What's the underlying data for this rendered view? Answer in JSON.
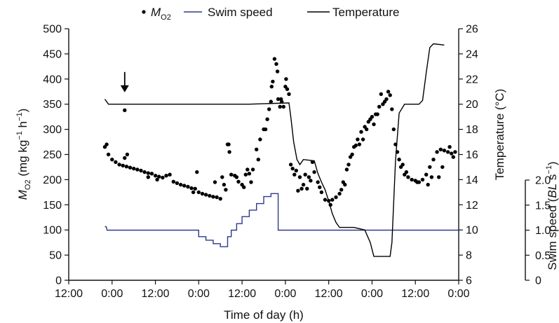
{
  "chart_data": {
    "type": "line",
    "xlabel": "Time of day (h)",
    "x_ticks": [
      "12:00",
      "0:00",
      "12:00",
      "0:00",
      "12:00",
      "0:00",
      "12:00",
      "0:00",
      "12:00",
      "0:00"
    ],
    "x_unit": "hours since first 12:00 tick",
    "xlim": [
      0,
      108
    ],
    "legend": {
      "placement": "top",
      "entries": [
        {
          "key": "mo2",
          "label_base": "M",
          "label_sub": "O2"
        },
        {
          "key": "speed",
          "label": "Swim speed"
        },
        {
          "key": "temp",
          "label": "Temperature"
        }
      ]
    },
    "axes": {
      "left": {
        "label_base": "M",
        "label_sub": "O2",
        "label_rest": " (mg kg",
        "label_exp1": "−1",
        "label_mid": " h",
        "label_exp2": "−1",
        "label_end": ")",
        "ylim": [
          0,
          500
        ],
        "ticks": [
          "0",
          "50",
          "100",
          "150",
          "200",
          "250",
          "300",
          "350",
          "400",
          "450",
          "500"
        ]
      },
      "right_temp": {
        "label": "Temperature (°C)",
        "ylim": [
          6,
          26
        ],
        "ticks": [
          "6",
          "8",
          "10",
          "12",
          "14",
          "16",
          "18",
          "20",
          "22",
          "24",
          "26"
        ]
      },
      "right_speed": {
        "label_pre": "Swim speed (",
        "label_italic": "BL",
        "label_mid": " s",
        "label_exp": "−1",
        "label_end": ")",
        "ylim": [
          0,
          2
        ],
        "ticks": [
          "0",
          "0.5",
          "1.0",
          "1.5",
          "2.0"
        ]
      }
    },
    "annotation": {
      "type": "arrow",
      "x": 15.5,
      "mo2": 375
    },
    "colors": {
      "mo2": "#000000",
      "speed": "#2e3a8c",
      "temp": "#000000"
    },
    "series": [
      {
        "key": "speed",
        "name": "Swim speed",
        "unit": "BL s-1",
        "points": [
          [
            10,
            1.07
          ],
          [
            10.4,
            1.07
          ],
          [
            10.6,
            1.0
          ],
          [
            36,
            1.0
          ],
          [
            36,
            0.87
          ],
          [
            38,
            0.87
          ],
          [
            38,
            0.8
          ],
          [
            40,
            0.8
          ],
          [
            40,
            0.73
          ],
          [
            42,
            0.73
          ],
          [
            42,
            0.67
          ],
          [
            44,
            0.67
          ],
          [
            44,
            0.87
          ],
          [
            45,
            0.87
          ],
          [
            45,
            1.0
          ],
          [
            46.5,
            1.0
          ],
          [
            46.5,
            1.13
          ],
          [
            48,
            1.13
          ],
          [
            48,
            1.27
          ],
          [
            50,
            1.27
          ],
          [
            50,
            1.4
          ],
          [
            52,
            1.4
          ],
          [
            52,
            1.53
          ],
          [
            54,
            1.53
          ],
          [
            54,
            1.67
          ],
          [
            56,
            1.67
          ],
          [
            56,
            1.73
          ],
          [
            58,
            1.73
          ],
          [
            58,
            1.0
          ],
          [
            108,
            1.0
          ]
        ]
      },
      {
        "key": "temp",
        "name": "Temperature",
        "unit": "°C",
        "points": [
          [
            10,
            20.4
          ],
          [
            11,
            20.0
          ],
          [
            30,
            20.0
          ],
          [
            50,
            20.0
          ],
          [
            61,
            20.1
          ],
          [
            61.5,
            19.0
          ],
          [
            62.3,
            17.0
          ],
          [
            63.2,
            15.6
          ],
          [
            64,
            15.2
          ],
          [
            65,
            15.6
          ],
          [
            68,
            15.5
          ],
          [
            69,
            14.5
          ],
          [
            70,
            13.8
          ],
          [
            71,
            13.2
          ],
          [
            72,
            12.3
          ],
          [
            73,
            11.3
          ],
          [
            74,
            10.6
          ],
          [
            75,
            10.2
          ],
          [
            79,
            10.2
          ],
          [
            82,
            10.0
          ],
          [
            83.5,
            9.0
          ],
          [
            84.5,
            7.9
          ],
          [
            89,
            7.9
          ],
          [
            89.5,
            9.0
          ],
          [
            90.5,
            15.5
          ],
          [
            91.5,
            19.3
          ],
          [
            93,
            20.0
          ],
          [
            97,
            20.0
          ],
          [
            98,
            20.3
          ],
          [
            99,
            22.5
          ],
          [
            100,
            24.5
          ],
          [
            101,
            24.8
          ],
          [
            104,
            24.7
          ]
        ]
      },
      {
        "key": "mo2",
        "name": "MO2",
        "unit": "mg kg-1 h-1",
        "points": [
          [
            10,
            265
          ],
          [
            10.5,
            270
          ],
          [
            11,
            250
          ],
          [
            12,
            240
          ],
          [
            13,
            235
          ],
          [
            14,
            230
          ],
          [
            15,
            228
          ],
          [
            16,
            226
          ],
          [
            17,
            224
          ],
          [
            18,
            222
          ],
          [
            19,
            220
          ],
          [
            20,
            218
          ],
          [
            21,
            215
          ],
          [
            22,
            213
          ],
          [
            23,
            212
          ],
          [
            24,
            208
          ],
          [
            25,
            206
          ],
          [
            26,
            204
          ],
          [
            27,
            208
          ],
          [
            28,
            210
          ],
          [
            29,
            196
          ],
          [
            30,
            193
          ],
          [
            31,
            190
          ],
          [
            32,
            188
          ],
          [
            33,
            186
          ],
          [
            34,
            183
          ],
          [
            35,
            182
          ],
          [
            36,
            175
          ],
          [
            37,
            172
          ],
          [
            38,
            170
          ],
          [
            39,
            168
          ],
          [
            40,
            166
          ],
          [
            41,
            165
          ],
          [
            42,
            162
          ],
          [
            42.5,
            205
          ],
          [
            43,
            190
          ],
          [
            43.5,
            180
          ],
          [
            44,
            270
          ],
          [
            44.5,
            255
          ],
          [
            45,
            210
          ],
          [
            46,
            208
          ],
          [
            47,
            196
          ],
          [
            48,
            190
          ],
          [
            49,
            210
          ],
          [
            50,
            212
          ],
          [
            51,
            220
          ],
          [
            52,
            260
          ],
          [
            53,
            280
          ],
          [
            54,
            300
          ],
          [
            55,
            320
          ],
          [
            56,
            355
          ],
          [
            56.5,
            395
          ],
          [
            57,
            440
          ],
          [
            57.5,
            430
          ],
          [
            58,
            360
          ],
          [
            58.5,
            345
          ],
          [
            59,
            355
          ],
          [
            60,
            385
          ],
          [
            60.5,
            380
          ],
          [
            61,
            370
          ],
          [
            61.5,
            230
          ],
          [
            62,
            222
          ],
          [
            63,
            218
          ],
          [
            64,
            205
          ],
          [
            65,
            190
          ],
          [
            66,
            182
          ],
          [
            67,
            198
          ],
          [
            68,
            215
          ],
          [
            69,
            195
          ],
          [
            70,
            175
          ],
          [
            71,
            160
          ],
          [
            72,
            158
          ],
          [
            73,
            160
          ],
          [
            74,
            165
          ],
          [
            75,
            172
          ],
          [
            76,
            195
          ],
          [
            77,
            220
          ],
          [
            78,
            245
          ],
          [
            79,
            265
          ],
          [
            80,
            280
          ],
          [
            81,
            295
          ],
          [
            82,
            305
          ],
          [
            83,
            315
          ],
          [
            84,
            325
          ],
          [
            85,
            330
          ],
          [
            86,
            345
          ],
          [
            87,
            350
          ],
          [
            88,
            360
          ],
          [
            89,
            368
          ],
          [
            89.5,
            340
          ],
          [
            90,
            300
          ],
          [
            91,
            255
          ],
          [
            91.5,
            240
          ],
          [
            92,
            225
          ],
          [
            93,
            210
          ],
          [
            94,
            205
          ],
          [
            95,
            200
          ],
          [
            96,
            198
          ],
          [
            97,
            195
          ],
          [
            98,
            200
          ],
          [
            99,
            210
          ],
          [
            100,
            225
          ],
          [
            101,
            240
          ],
          [
            102,
            255
          ],
          [
            103,
            260
          ],
          [
            104,
            258
          ],
          [
            105,
            255
          ],
          [
            106,
            252
          ],
          [
            107,
            255
          ],
          [
            15.5,
            338
          ],
          [
            15.5,
            243
          ],
          [
            16.2,
            250
          ],
          [
            22,
            205
          ],
          [
            24.5,
            200
          ],
          [
            34.5,
            175
          ],
          [
            35.5,
            215
          ],
          [
            40.5,
            195
          ],
          [
            44.3,
            270
          ],
          [
            46.5,
            205
          ],
          [
            48.5,
            185
          ],
          [
            49.5,
            220
          ],
          [
            50.5,
            195
          ],
          [
            52.5,
            240
          ],
          [
            54.5,
            300
          ],
          [
            55.5,
            340
          ],
          [
            56.2,
            385
          ],
          [
            57.8,
            415
          ],
          [
            58.8,
            360
          ],
          [
            59.5,
            345
          ],
          [
            60.2,
            400
          ],
          [
            62.5,
            210
          ],
          [
            63.5,
            178
          ],
          [
            64.5,
            182
          ],
          [
            65.5,
            210
          ],
          [
            66.5,
            205
          ],
          [
            67.5,
            235
          ],
          [
            69.5,
            185
          ],
          [
            72.5,
            150
          ],
          [
            75.5,
            180
          ],
          [
            76.5,
            190
          ],
          [
            77.5,
            230
          ],
          [
            78.5,
            250
          ],
          [
            79.5,
            268
          ],
          [
            80.5,
            270
          ],
          [
            81.5,
            280
          ],
          [
            82.5,
            300
          ],
          [
            83.5,
            320
          ],
          [
            84.5,
            310
          ],
          [
            85.5,
            330
          ],
          [
            86.5,
            370
          ],
          [
            87.5,
            355
          ],
          [
            88.5,
            375
          ],
          [
            90.5,
            270
          ],
          [
            92.5,
            230
          ],
          [
            93.5,
            215
          ],
          [
            96.5,
            195
          ],
          [
            99.5,
            190
          ],
          [
            100.5,
            205
          ],
          [
            102.5,
            205
          ],
          [
            103.5,
            225
          ],
          [
            105.5,
            265
          ],
          [
            106.5,
            245
          ]
        ]
      }
    ]
  }
}
